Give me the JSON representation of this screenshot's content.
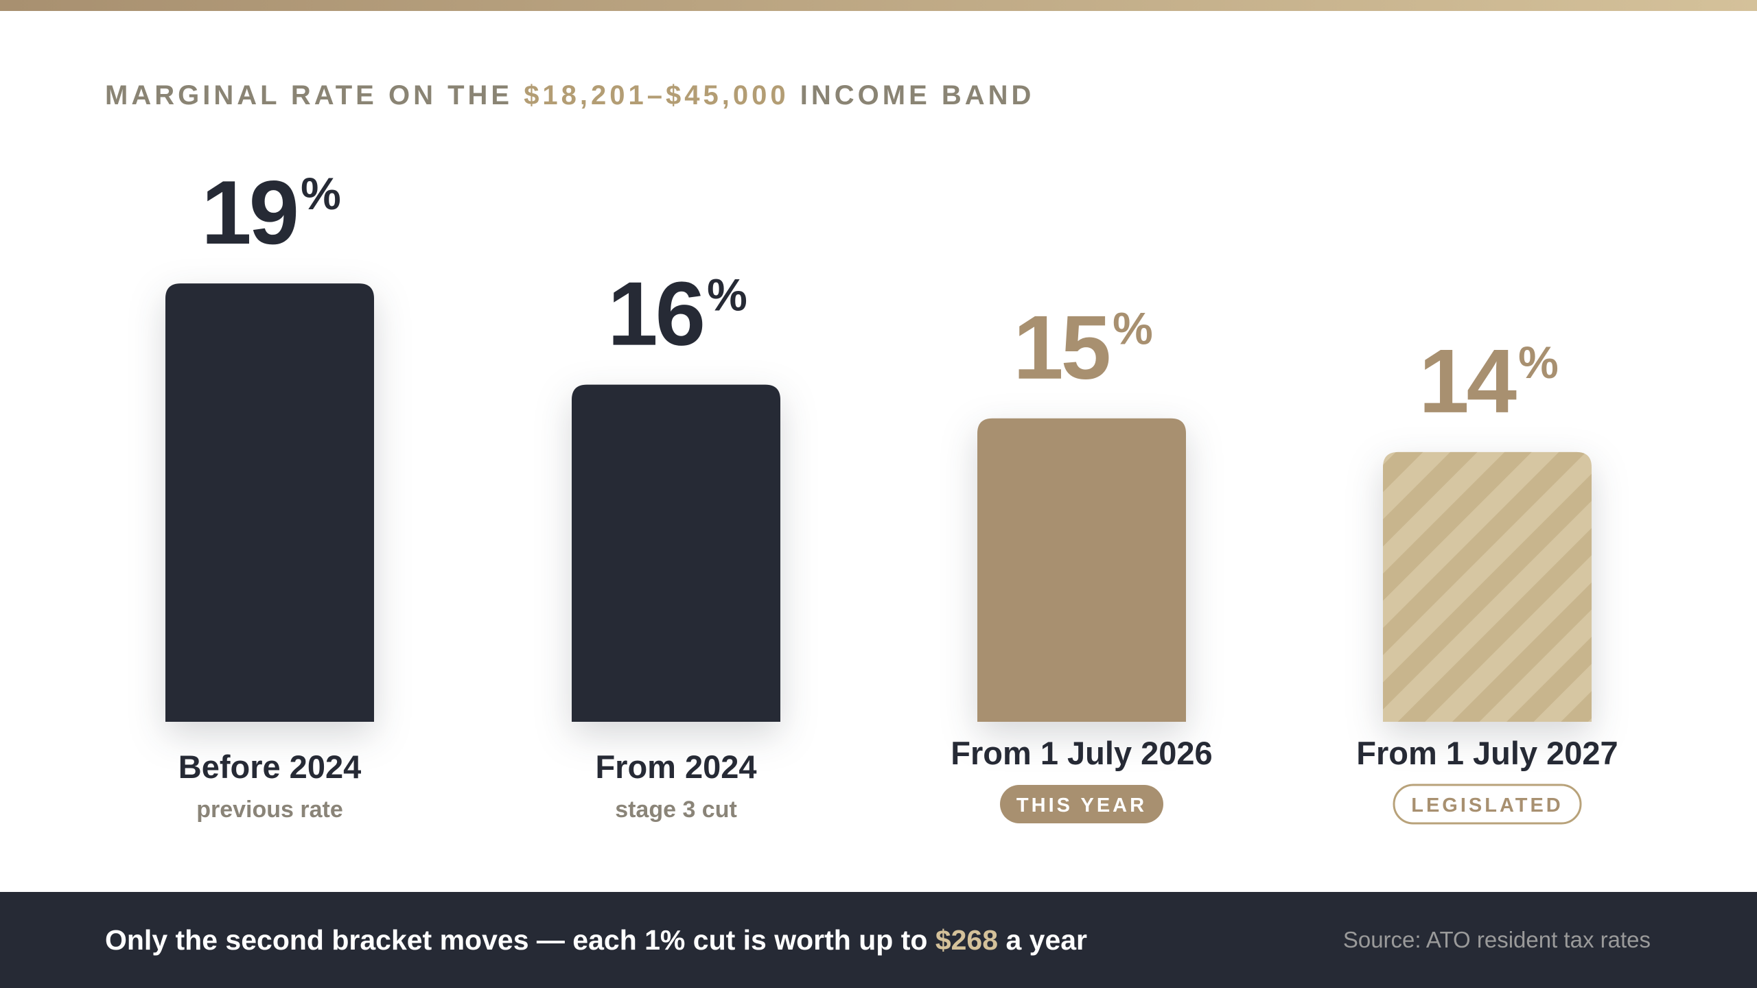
{
  "chart_data": {
    "type": "bar",
    "title": [
      "MARGINAL RATE ON THE",
      "$18,201–$45,000",
      "INCOME BAND"
    ],
    "categories": [
      "Before 2024",
      "From 2024",
      "From 1 July 2026",
      "From 1 July 2027"
    ],
    "sublabels": [
      "previous rate",
      "stage 3 cut",
      null,
      null
    ],
    "badges": [
      null,
      null,
      "THIS YEAR",
      "LEGISLATED"
    ],
    "badge_styles": [
      null,
      null,
      "filled",
      "outline"
    ],
    "values": [
      19,
      16,
      15,
      14
    ],
    "value_suffix": "%",
    "colors": [
      "#262a35",
      "#262a35",
      "#a89070",
      "#d6c6a2"
    ],
    "label_colors": [
      "#262a35",
      "#262a35",
      "#a89070",
      "#a89070"
    ],
    "hatched": [
      false,
      false,
      false,
      true
    ],
    "ylim": [
      6,
      20
    ],
    "footer": [
      "Only the second bracket moves — each 1% cut is worth up to",
      "$268",
      "a year"
    ],
    "source": "Source: ATO resident tax rates"
  }
}
